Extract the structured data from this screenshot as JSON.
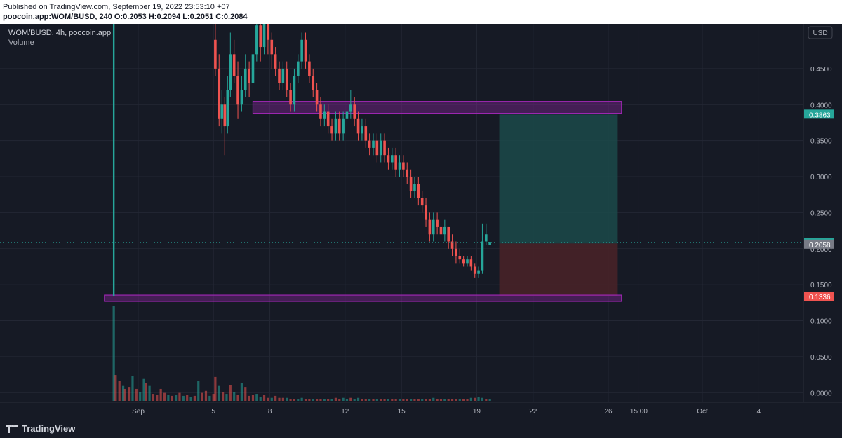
{
  "header": {
    "published": "Published on TradingView.com, September 19, 2022 23:53:10 +07",
    "symbol_line": "poocoin.app:WOM/BUSD, 240",
    "ohlc": {
      "o_label": "O:",
      "o": "0.2053",
      "h_label": "H:",
      "h": "0.2094",
      "l_label": "L:",
      "l": "0.2051",
      "c_label": "C:",
      "c": "0.2084"
    }
  },
  "legend": {
    "title": "WOM/BUSD, 4h, poocoin.app",
    "volume_label": "Volume"
  },
  "footer": {
    "brand": "TradingView"
  },
  "colors": {
    "background": "#161a25",
    "up": "#26a69a",
    "down": "#ef5350",
    "zone": "#9c27b0",
    "target_fill": "#1b4a4a",
    "stop_fill": "#4a2328",
    "grid": "#232734",
    "text": "#b2b5be"
  },
  "chart_data": {
    "type": "candlestick",
    "currency": "USD",
    "y_axis_ticks": [
      "0.4500",
      "0.4000",
      "0.3500",
      "0.3000",
      "0.2500",
      "0.2000",
      "0.1500",
      "0.1000",
      "0.0500",
      "0.0000"
    ],
    "y_axis_tick_values": [
      0.45,
      0.4,
      0.35,
      0.3,
      0.25,
      0.2,
      0.15,
      0.1,
      0.05,
      0.0
    ],
    "x_axis_labels": [
      "Sep",
      "5",
      "8",
      "12",
      "15",
      "19",
      "22",
      "26",
      "15:00",
      "Oct",
      "4"
    ],
    "x_axis_days": [
      1,
      5,
      8,
      12,
      15,
      19,
      22,
      26,
      27.62,
      31,
      34
    ],
    "price_labels": [
      {
        "value": 0.3863,
        "text": "0.3863",
        "color": "#26a69a"
      },
      {
        "value": 0.2084,
        "text": "0.2084",
        "color": "#26a69a"
      },
      {
        "value": 0.2058,
        "text": "0.2058",
        "color": "#787b86"
      },
      {
        "value": 0.1336,
        "text": "0.1336",
        "color": "#ef5350"
      }
    ],
    "zones": [
      {
        "from_day": 7.1,
        "to_day": 26.7,
        "low": 0.388,
        "high": 0.4045
      },
      {
        "from_day": -0.8,
        "to_day": 26.7,
        "low": 0.1268,
        "high": 0.1355
      }
    ],
    "position": {
      "from_day": 20.2,
      "to_day": 26.5,
      "entry": 0.2072,
      "target": 0.3863,
      "stop": 0.1336
    },
    "current_price": 0.2084,
    "spike": {
      "day": -0.3,
      "open": 0.1336,
      "close": 0.53,
      "high": 0.53,
      "low": 0.1336
    },
    "volume": [
      [
        -0.3,
        0.95,
        "up"
      ],
      [
        -0.2,
        0.26,
        "down"
      ],
      [
        0.0,
        0.2,
        "down"
      ],
      [
        0.2,
        0.15,
        "up"
      ],
      [
        0.3,
        0.12,
        "down"
      ],
      [
        0.5,
        0.14,
        "down"
      ],
      [
        0.7,
        0.25,
        "up"
      ],
      [
        0.9,
        0.12,
        "down"
      ],
      [
        1.1,
        0.09,
        "up"
      ],
      [
        1.3,
        0.22,
        "up"
      ],
      [
        1.4,
        0.18,
        "down"
      ],
      [
        1.6,
        0.15,
        "up"
      ],
      [
        1.8,
        0.07,
        "down"
      ],
      [
        2.0,
        0.06,
        "down"
      ],
      [
        2.2,
        0.12,
        "down"
      ],
      [
        2.4,
        0.08,
        "down"
      ],
      [
        2.6,
        0.06,
        "up"
      ],
      [
        2.8,
        0.05,
        "down"
      ],
      [
        3.0,
        0.06,
        "up"
      ],
      [
        3.2,
        0.08,
        "down"
      ],
      [
        3.4,
        0.05,
        "up"
      ],
      [
        3.6,
        0.06,
        "down"
      ],
      [
        3.8,
        0.04,
        "up"
      ],
      [
        4.0,
        0.05,
        "down"
      ],
      [
        4.2,
        0.2,
        "up"
      ],
      [
        4.4,
        0.08,
        "down"
      ],
      [
        4.6,
        0.1,
        "down"
      ],
      [
        4.8,
        0.05,
        "up"
      ],
      [
        5.0,
        0.07,
        "down"
      ],
      [
        5.1,
        0.24,
        "down"
      ],
      [
        5.3,
        0.15,
        "up"
      ],
      [
        5.5,
        0.09,
        "down"
      ],
      [
        5.7,
        0.07,
        "up"
      ],
      [
        5.9,
        0.16,
        "down"
      ],
      [
        6.1,
        0.09,
        "up"
      ],
      [
        6.3,
        0.06,
        "down"
      ],
      [
        6.5,
        0.18,
        "up"
      ],
      [
        6.7,
        0.14,
        "down"
      ],
      [
        6.9,
        0.05,
        "down"
      ],
      [
        7.1,
        0.06,
        "down"
      ],
      [
        7.3,
        0.07,
        "up"
      ],
      [
        7.5,
        0.04,
        "up"
      ],
      [
        7.7,
        0.06,
        "down"
      ],
      [
        7.9,
        0.03,
        "down"
      ],
      [
        8.1,
        0.03,
        "up"
      ],
      [
        8.3,
        0.05,
        "down"
      ],
      [
        8.5,
        0.03,
        "down"
      ],
      [
        8.7,
        0.03,
        "down"
      ],
      [
        8.9,
        0.03,
        "up"
      ],
      [
        9.1,
        0.02,
        "down"
      ],
      [
        9.3,
        0.02,
        "down"
      ],
      [
        9.5,
        0.02,
        "up"
      ],
      [
        9.7,
        0.03,
        "up"
      ],
      [
        9.9,
        0.02,
        "down"
      ],
      [
        10.1,
        0.02,
        "down"
      ],
      [
        10.3,
        0.02,
        "up"
      ],
      [
        10.5,
        0.02,
        "down"
      ],
      [
        10.7,
        0.02,
        "down"
      ],
      [
        10.9,
        0.02,
        "up"
      ],
      [
        11.1,
        0.02,
        "down"
      ],
      [
        11.3,
        0.02,
        "up"
      ],
      [
        11.5,
        0.03,
        "down"
      ],
      [
        11.7,
        0.02,
        "down"
      ],
      [
        11.9,
        0.03,
        "up"
      ],
      [
        12.1,
        0.02,
        "up"
      ],
      [
        12.3,
        0.03,
        "down"
      ],
      [
        12.5,
        0.02,
        "up"
      ],
      [
        12.7,
        0.03,
        "up"
      ],
      [
        12.9,
        0.02,
        "down"
      ],
      [
        13.1,
        0.02,
        "down"
      ],
      [
        13.3,
        0.02,
        "up"
      ],
      [
        13.5,
        0.02,
        "down"
      ],
      [
        13.7,
        0.02,
        "up"
      ],
      [
        13.9,
        0.02,
        "down"
      ],
      [
        14.1,
        0.02,
        "down"
      ],
      [
        14.3,
        0.02,
        "up"
      ],
      [
        14.5,
        0.02,
        "down"
      ],
      [
        14.7,
        0.02,
        "down"
      ],
      [
        14.9,
        0.02,
        "up"
      ],
      [
        15.1,
        0.02,
        "down"
      ],
      [
        15.3,
        0.02,
        "down"
      ],
      [
        15.5,
        0.02,
        "up"
      ],
      [
        15.7,
        0.02,
        "down"
      ],
      [
        15.9,
        0.02,
        "down"
      ],
      [
        16.1,
        0.02,
        "up"
      ],
      [
        16.3,
        0.02,
        "down"
      ],
      [
        16.5,
        0.02,
        "down"
      ],
      [
        16.7,
        0.03,
        "up"
      ],
      [
        16.9,
        0.02,
        "down"
      ],
      [
        17.1,
        0.02,
        "down"
      ],
      [
        17.3,
        0.02,
        "up"
      ],
      [
        17.5,
        0.02,
        "down"
      ],
      [
        17.7,
        0.02,
        "down"
      ],
      [
        17.9,
        0.02,
        "down"
      ],
      [
        18.1,
        0.02,
        "up"
      ],
      [
        18.3,
        0.02,
        "down"
      ],
      [
        18.5,
        0.02,
        "down"
      ],
      [
        18.7,
        0.03,
        "up"
      ],
      [
        18.9,
        0.03,
        "down"
      ],
      [
        19.1,
        0.04,
        "up"
      ],
      [
        19.3,
        0.03,
        "up"
      ],
      [
        19.5,
        0.02,
        "down"
      ],
      [
        19.7,
        0.02,
        "up"
      ]
    ],
    "candles": [
      [
        5.1,
        0.49,
        0.45,
        0.53,
        0.44
      ],
      [
        5.3,
        0.45,
        0.38,
        0.47,
        0.37
      ],
      [
        5.45,
        0.38,
        0.4,
        0.42,
        0.36
      ],
      [
        5.6,
        0.4,
        0.37,
        0.41,
        0.33
      ],
      [
        5.75,
        0.37,
        0.42,
        0.44,
        0.36
      ],
      [
        5.9,
        0.42,
        0.47,
        0.5,
        0.41
      ],
      [
        6.1,
        0.47,
        0.44,
        0.49,
        0.43
      ],
      [
        6.3,
        0.44,
        0.4,
        0.46,
        0.38
      ],
      [
        6.5,
        0.4,
        0.42,
        0.44,
        0.39
      ],
      [
        6.7,
        0.42,
        0.45,
        0.47,
        0.41
      ],
      [
        6.9,
        0.45,
        0.43,
        0.46,
        0.41
      ],
      [
        7.1,
        0.43,
        0.47,
        0.49,
        0.42
      ],
      [
        7.3,
        0.47,
        0.51,
        0.53,
        0.46
      ],
      [
        7.5,
        0.51,
        0.48,
        0.53,
        0.46
      ],
      [
        7.7,
        0.48,
        0.52,
        0.53,
        0.47
      ],
      [
        7.9,
        0.52,
        0.49,
        0.53,
        0.47
      ],
      [
        8.1,
        0.49,
        0.47,
        0.5,
        0.45
      ],
      [
        8.3,
        0.47,
        0.45,
        0.48,
        0.44
      ],
      [
        8.5,
        0.45,
        0.43,
        0.46,
        0.42
      ],
      [
        8.7,
        0.43,
        0.45,
        0.46,
        0.42
      ],
      [
        8.9,
        0.45,
        0.42,
        0.46,
        0.41
      ],
      [
        9.1,
        0.42,
        0.4,
        0.43,
        0.39
      ],
      [
        9.3,
        0.4,
        0.44,
        0.45,
        0.39
      ],
      [
        9.5,
        0.44,
        0.46,
        0.47,
        0.43
      ],
      [
        9.7,
        0.46,
        0.49,
        0.5,
        0.45
      ],
      [
        9.9,
        0.49,
        0.46,
        0.5,
        0.45
      ],
      [
        10.1,
        0.46,
        0.44,
        0.47,
        0.43
      ],
      [
        10.3,
        0.44,
        0.42,
        0.45,
        0.41
      ],
      [
        10.5,
        0.42,
        0.4,
        0.43,
        0.39
      ],
      [
        10.7,
        0.4,
        0.38,
        0.41,
        0.37
      ],
      [
        10.9,
        0.38,
        0.39,
        0.4,
        0.37
      ],
      [
        11.1,
        0.39,
        0.37,
        0.4,
        0.36
      ],
      [
        11.3,
        0.37,
        0.36,
        0.38,
        0.35
      ],
      [
        11.5,
        0.36,
        0.38,
        0.39,
        0.35
      ],
      [
        11.7,
        0.38,
        0.36,
        0.39,
        0.35
      ],
      [
        11.9,
        0.36,
        0.38,
        0.39,
        0.35
      ],
      [
        12.1,
        0.38,
        0.39,
        0.4,
        0.37
      ],
      [
        12.3,
        0.39,
        0.4,
        0.42,
        0.38
      ],
      [
        12.5,
        0.4,
        0.38,
        0.41,
        0.37
      ],
      [
        12.7,
        0.38,
        0.36,
        0.39,
        0.35
      ],
      [
        12.9,
        0.36,
        0.37,
        0.38,
        0.35
      ],
      [
        13.1,
        0.37,
        0.35,
        0.38,
        0.34
      ],
      [
        13.3,
        0.35,
        0.34,
        0.36,
        0.33
      ],
      [
        13.5,
        0.34,
        0.35,
        0.36,
        0.33
      ],
      [
        13.7,
        0.35,
        0.33,
        0.36,
        0.32
      ],
      [
        13.9,
        0.33,
        0.35,
        0.36,
        0.32
      ],
      [
        14.1,
        0.35,
        0.33,
        0.36,
        0.32
      ],
      [
        14.3,
        0.33,
        0.32,
        0.34,
        0.31
      ],
      [
        14.5,
        0.32,
        0.33,
        0.34,
        0.31
      ],
      [
        14.7,
        0.33,
        0.31,
        0.34,
        0.3
      ],
      [
        14.9,
        0.31,
        0.32,
        0.33,
        0.3
      ],
      [
        15.1,
        0.32,
        0.31,
        0.33,
        0.3
      ],
      [
        15.3,
        0.31,
        0.3,
        0.32,
        0.29
      ],
      [
        15.5,
        0.3,
        0.28,
        0.31,
        0.27
      ],
      [
        15.7,
        0.28,
        0.29,
        0.3,
        0.27
      ],
      [
        15.9,
        0.29,
        0.27,
        0.3,
        0.26
      ],
      [
        16.1,
        0.27,
        0.26,
        0.28,
        0.25
      ],
      [
        16.3,
        0.26,
        0.24,
        0.27,
        0.23
      ],
      [
        16.5,
        0.24,
        0.22,
        0.25,
        0.21
      ],
      [
        16.7,
        0.22,
        0.24,
        0.25,
        0.21
      ],
      [
        16.9,
        0.24,
        0.23,
        0.25,
        0.22
      ],
      [
        17.1,
        0.23,
        0.22,
        0.24,
        0.21
      ],
      [
        17.3,
        0.22,
        0.23,
        0.24,
        0.21
      ],
      [
        17.5,
        0.23,
        0.21,
        0.23,
        0.2
      ],
      [
        17.7,
        0.21,
        0.2,
        0.22,
        0.19
      ],
      [
        17.9,
        0.2,
        0.19,
        0.21,
        0.18
      ],
      [
        18.1,
        0.19,
        0.185,
        0.2,
        0.18
      ],
      [
        18.3,
        0.185,
        0.18,
        0.19,
        0.175
      ],
      [
        18.5,
        0.18,
        0.185,
        0.19,
        0.175
      ],
      [
        18.7,
        0.185,
        0.175,
        0.19,
        0.17
      ],
      [
        18.9,
        0.175,
        0.165,
        0.18,
        0.16
      ],
      [
        19.1,
        0.165,
        0.17,
        0.175,
        0.16
      ],
      [
        19.3,
        0.17,
        0.21,
        0.235,
        0.165
      ],
      [
        19.5,
        0.21,
        0.22,
        0.235,
        0.205
      ],
      [
        19.7,
        0.2053,
        0.2084,
        0.2094,
        0.2051
      ]
    ]
  }
}
